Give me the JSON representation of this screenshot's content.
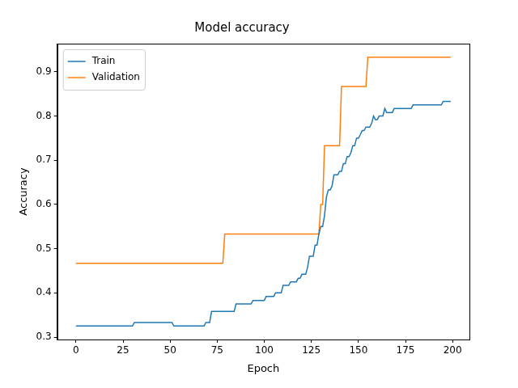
{
  "chart_data": {
    "type": "line",
    "title": "Model accuracy",
    "x_label": "Epoch",
    "y_label": "Accuracy",
    "x": [
      0,
      1,
      2,
      3,
      4,
      5,
      6,
      7,
      8,
      9,
      10,
      11,
      12,
      13,
      14,
      15,
      16,
      17,
      18,
      19,
      20,
      21,
      22,
      23,
      24,
      25,
      26,
      27,
      28,
      29,
      30,
      31,
      32,
      33,
      34,
      35,
      36,
      37,
      38,
      39,
      40,
      41,
      42,
      43,
      44,
      45,
      46,
      47,
      48,
      49,
      50,
      51,
      52,
      53,
      54,
      55,
      56,
      57,
      58,
      59,
      60,
      61,
      62,
      63,
      64,
      65,
      66,
      67,
      68,
      69,
      70,
      71,
      72,
      73,
      74,
      75,
      76,
      77,
      78,
      79,
      80,
      81,
      82,
      83,
      84,
      85,
      86,
      87,
      88,
      89,
      90,
      91,
      92,
      93,
      94,
      95,
      96,
      97,
      98,
      99,
      100,
      101,
      102,
      103,
      104,
      105,
      106,
      107,
      108,
      109,
      110,
      111,
      112,
      113,
      114,
      115,
      116,
      117,
      118,
      119,
      120,
      121,
      122,
      123,
      124,
      125,
      126,
      127,
      128,
      129,
      130,
      131,
      132,
      133,
      134,
      135,
      136,
      137,
      138,
      139,
      140,
      141,
      142,
      143,
      144,
      145,
      146,
      147,
      148,
      149,
      150,
      151,
      152,
      153,
      154,
      155,
      156,
      157,
      158,
      159,
      160,
      161,
      162,
      163,
      164,
      165,
      166,
      167,
      168,
      169,
      170,
      171,
      172,
      173,
      174,
      175,
      176,
      177,
      178,
      179,
      180,
      181,
      182,
      183,
      184,
      185,
      186,
      187,
      188,
      189,
      190,
      191,
      192,
      193,
      194,
      195,
      196,
      197,
      198,
      199
    ],
    "series": [
      {
        "name": "Train",
        "color": "#1f77b4",
        "values": [
          0.325,
          0.325,
          0.325,
          0.325,
          0.325,
          0.325,
          0.325,
          0.325,
          0.325,
          0.325,
          0.325,
          0.325,
          0.325,
          0.325,
          0.325,
          0.325,
          0.325,
          0.325,
          0.325,
          0.325,
          0.325,
          0.325,
          0.325,
          0.325,
          0.325,
          0.325,
          0.325,
          0.325,
          0.325,
          0.325,
          0.325,
          0.333,
          0.333,
          0.333,
          0.333,
          0.333,
          0.333,
          0.333,
          0.333,
          0.333,
          0.333,
          0.333,
          0.333,
          0.333,
          0.333,
          0.333,
          0.333,
          0.333,
          0.333,
          0.333,
          0.333,
          0.333,
          0.325,
          0.325,
          0.325,
          0.325,
          0.325,
          0.325,
          0.325,
          0.325,
          0.325,
          0.325,
          0.325,
          0.325,
          0.325,
          0.325,
          0.325,
          0.325,
          0.325,
          0.333,
          0.333,
          0.333,
          0.358,
          0.358,
          0.358,
          0.358,
          0.358,
          0.358,
          0.358,
          0.358,
          0.358,
          0.358,
          0.358,
          0.358,
          0.358,
          0.375,
          0.375,
          0.375,
          0.375,
          0.375,
          0.375,
          0.375,
          0.375,
          0.375,
          0.383,
          0.383,
          0.383,
          0.383,
          0.383,
          0.383,
          0.383,
          0.392,
          0.392,
          0.392,
          0.392,
          0.392,
          0.4,
          0.4,
          0.4,
          0.4,
          0.417,
          0.417,
          0.417,
          0.417,
          0.425,
          0.425,
          0.425,
          0.425,
          0.433,
          0.433,
          0.442,
          0.442,
          0.442,
          0.458,
          0.483,
          0.483,
          0.483,
          0.508,
          0.508,
          0.533,
          0.55,
          0.55,
          0.575,
          0.617,
          0.633,
          0.633,
          0.642,
          0.667,
          0.667,
          0.667,
          0.675,
          0.675,
          0.692,
          0.692,
          0.708,
          0.708,
          0.717,
          0.733,
          0.733,
          0.75,
          0.75,
          0.758,
          0.767,
          0.767,
          0.775,
          0.775,
          0.775,
          0.783,
          0.8,
          0.792,
          0.792,
          0.8,
          0.8,
          0.8,
          0.817,
          0.808,
          0.808,
          0.808,
          0.808,
          0.817,
          0.817,
          0.817,
          0.817,
          0.817,
          0.817,
          0.817,
          0.817,
          0.817,
          0.817,
          0.825,
          0.825,
          0.825,
          0.825,
          0.825,
          0.825,
          0.825,
          0.825,
          0.825,
          0.825,
          0.825,
          0.825,
          0.825,
          0.825,
          0.825,
          0.825,
          0.833,
          0.833,
          0.833,
          0.833,
          0.833
        ]
      },
      {
        "name": "Validation",
        "color": "#ff7f0e",
        "values": [
          0.467,
          0.467,
          0.467,
          0.467,
          0.467,
          0.467,
          0.467,
          0.467,
          0.467,
          0.467,
          0.467,
          0.467,
          0.467,
          0.467,
          0.467,
          0.467,
          0.467,
          0.467,
          0.467,
          0.467,
          0.467,
          0.467,
          0.467,
          0.467,
          0.467,
          0.467,
          0.467,
          0.467,
          0.467,
          0.467,
          0.467,
          0.467,
          0.467,
          0.467,
          0.467,
          0.467,
          0.467,
          0.467,
          0.467,
          0.467,
          0.467,
          0.467,
          0.467,
          0.467,
          0.467,
          0.467,
          0.467,
          0.467,
          0.467,
          0.467,
          0.467,
          0.467,
          0.467,
          0.467,
          0.467,
          0.467,
          0.467,
          0.467,
          0.467,
          0.467,
          0.467,
          0.467,
          0.467,
          0.467,
          0.467,
          0.467,
          0.467,
          0.467,
          0.467,
          0.467,
          0.467,
          0.467,
          0.467,
          0.467,
          0.467,
          0.467,
          0.467,
          0.467,
          0.467,
          0.533,
          0.533,
          0.533,
          0.533,
          0.533,
          0.533,
          0.533,
          0.533,
          0.533,
          0.533,
          0.533,
          0.533,
          0.533,
          0.533,
          0.533,
          0.533,
          0.533,
          0.533,
          0.533,
          0.533,
          0.533,
          0.533,
          0.533,
          0.533,
          0.533,
          0.533,
          0.533,
          0.533,
          0.533,
          0.533,
          0.533,
          0.533,
          0.533,
          0.533,
          0.533,
          0.533,
          0.533,
          0.533,
          0.533,
          0.533,
          0.533,
          0.533,
          0.533,
          0.533,
          0.533,
          0.533,
          0.533,
          0.533,
          0.533,
          0.533,
          0.533,
          0.6,
          0.6,
          0.733,
          0.733,
          0.733,
          0.733,
          0.733,
          0.733,
          0.733,
          0.733,
          0.733,
          0.867,
          0.867,
          0.867,
          0.867,
          0.867,
          0.867,
          0.867,
          0.867,
          0.867,
          0.867,
          0.867,
          0.867,
          0.867,
          0.867,
          0.933,
          0.933,
          0.933,
          0.933,
          0.933,
          0.933,
          0.933,
          0.933,
          0.933,
          0.933,
          0.933,
          0.933,
          0.933,
          0.933,
          0.933,
          0.933,
          0.933,
          0.933,
          0.933,
          0.933,
          0.933,
          0.933,
          0.933,
          0.933,
          0.933,
          0.933,
          0.933,
          0.933,
          0.933,
          0.933,
          0.933,
          0.933,
          0.933,
          0.933,
          0.933,
          0.933,
          0.933,
          0.933,
          0.933,
          0.933,
          0.933,
          0.933,
          0.933,
          0.933,
          0.933
        ]
      }
    ],
    "xlim": [
      -9.95,
      208.95
    ],
    "xticks": [
      0,
      25,
      50,
      75,
      100,
      125,
      150,
      175,
      200
    ],
    "ylim": [
      0.2946,
      0.9637
    ],
    "yticks": [
      0.3,
      0.4,
      0.5,
      0.6,
      0.7,
      0.8,
      0.9
    ],
    "grid": false,
    "legend": "upper left"
  }
}
